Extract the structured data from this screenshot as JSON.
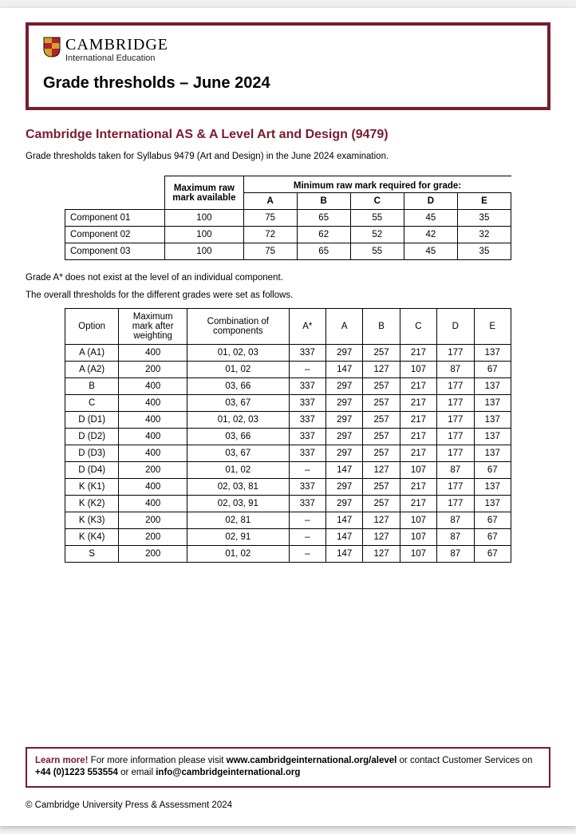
{
  "brand": {
    "name": "CAMBRIDGE",
    "sub": "International Education"
  },
  "page_title": "Grade thresholds – June 2024",
  "subject_title": "Cambridge International AS & A Level Art and Design (9479)",
  "intro": "Grade thresholds taken for Syllabus 9479 (Art and Design) in the June 2024 examination.",
  "t1": {
    "span_header": "Minimum raw mark required for grade:",
    "max_mark_head": "Maximum raw mark available",
    "grades": [
      "A",
      "B",
      "C",
      "D",
      "E"
    ],
    "rows": [
      {
        "label": "Component 01",
        "max": "100",
        "vals": [
          "75",
          "65",
          "55",
          "45",
          "35"
        ]
      },
      {
        "label": "Component 02",
        "max": "100",
        "vals": [
          "72",
          "62",
          "52",
          "42",
          "32"
        ]
      },
      {
        "label": "Component 03",
        "max": "100",
        "vals": [
          "75",
          "65",
          "55",
          "45",
          "35"
        ]
      }
    ]
  },
  "note1": "Grade A* does not exist at the level of an individual component.",
  "note2": "The overall thresholds for the different grades were set as follows.",
  "t2": {
    "headers": {
      "option": "Option",
      "max": "Maximum mark after weighting",
      "comb": "Combination of components",
      "grades": [
        "A*",
        "A",
        "B",
        "C",
        "D",
        "E"
      ]
    },
    "rows": [
      {
        "opt": "A (A1)",
        "max": "400",
        "comb": "01, 02, 03",
        "v": [
          "337",
          "297",
          "257",
          "217",
          "177",
          "137"
        ]
      },
      {
        "opt": "A (A2)",
        "max": "200",
        "comb": "01, 02",
        "v": [
          "–",
          "147",
          "127",
          "107",
          "87",
          "67"
        ]
      },
      {
        "opt": "B",
        "max": "400",
        "comb": "03, 66",
        "v": [
          "337",
          "297",
          "257",
          "217",
          "177",
          "137"
        ]
      },
      {
        "opt": "C",
        "max": "400",
        "comb": "03, 67",
        "v": [
          "337",
          "297",
          "257",
          "217",
          "177",
          "137"
        ]
      },
      {
        "opt": "D (D1)",
        "max": "400",
        "comb": "01, 02, 03",
        "v": [
          "337",
          "297",
          "257",
          "217",
          "177",
          "137"
        ]
      },
      {
        "opt": "D (D2)",
        "max": "400",
        "comb": "03, 66",
        "v": [
          "337",
          "297",
          "257",
          "217",
          "177",
          "137"
        ]
      },
      {
        "opt": "D (D3)",
        "max": "400",
        "comb": "03, 67",
        "v": [
          "337",
          "297",
          "257",
          "217",
          "177",
          "137"
        ]
      },
      {
        "opt": "D (D4)",
        "max": "200",
        "comb": "01, 02",
        "v": [
          "–",
          "147",
          "127",
          "107",
          "87",
          "67"
        ]
      },
      {
        "opt": "K (K1)",
        "max": "400",
        "comb": "02, 03, 81",
        "v": [
          "337",
          "297",
          "257",
          "217",
          "177",
          "137"
        ]
      },
      {
        "opt": "K (K2)",
        "max": "400",
        "comb": "02, 03, 91",
        "v": [
          "337",
          "297",
          "257",
          "217",
          "177",
          "137"
        ]
      },
      {
        "opt": "K (K3)",
        "max": "200",
        "comb": "02, 81",
        "v": [
          "–",
          "147",
          "127",
          "107",
          "87",
          "67"
        ]
      },
      {
        "opt": "K (K4)",
        "max": "200",
        "comb": "02, 91",
        "v": [
          "–",
          "147",
          "127",
          "107",
          "87",
          "67"
        ]
      },
      {
        "opt": "S",
        "max": "200",
        "comb": "01, 02",
        "v": [
          "–",
          "147",
          "127",
          "107",
          "87",
          "67"
        ]
      }
    ]
  },
  "footer": {
    "learn_more": "Learn more!",
    "text1": " For more information please visit ",
    "url": "www.cambridgeinternational.org/alevel",
    "text2": " or contact Customer Services on ",
    "phone": "+44 (0)1223 553554",
    "text3": " or email ",
    "email": "info@cambridgeinternational.org"
  },
  "copyright": "© Cambridge University Press & Assessment 2024"
}
